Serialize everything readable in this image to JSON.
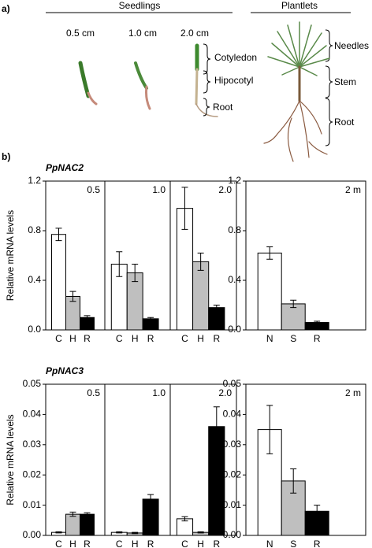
{
  "panel_a": {
    "label": "a)",
    "seedlings_title": "Seedlings",
    "sizes": [
      "0.5 cm",
      "1.0 cm",
      "2.0 cm"
    ],
    "seedling_parts": [
      "Cotyledon",
      "Hipocotyl",
      "Root"
    ],
    "plantlets_title": "Plantlets",
    "plantlet_parts": [
      "Needles",
      "Stem",
      "Root"
    ]
  },
  "panel_b": {
    "label": "b)"
  },
  "chart_data": [
    {
      "type": "bar",
      "title": "PpNAC2",
      "ylabel": "Relative mRNA levels",
      "ylim": [
        0,
        1.2
      ],
      "yticks": [
        {
          "value": 0,
          "label": "0.0"
        },
        0.4,
        0.8,
        1.2
      ],
      "colors": [
        "#ffffff",
        "#bfbfbf",
        "#000000"
      ],
      "panels": [
        {
          "label": "0.5",
          "categories": [
            "C",
            "H",
            "R"
          ],
          "values": [
            0.77,
            0.27,
            0.1
          ],
          "errors": [
            0.05,
            0.04,
            0.015
          ]
        },
        {
          "label": "1.0",
          "categories": [
            "C",
            "H",
            "R"
          ],
          "values": [
            0.53,
            0.46,
            0.09
          ],
          "errors": [
            0.1,
            0.07,
            0.01
          ]
        },
        {
          "label": "2.0",
          "categories": [
            "C",
            "H",
            "R"
          ],
          "values": [
            0.98,
            0.55,
            0.18
          ],
          "errors": [
            0.17,
            0.07,
            0.02
          ]
        },
        {
          "label": "2 m",
          "categories": [
            "N",
            "S",
            "R"
          ],
          "values": [
            0.62,
            0.21,
            0.06
          ],
          "errors": [
            0.05,
            0.03,
            0.01
          ]
        }
      ]
    },
    {
      "type": "bar",
      "title": "PpNAC3",
      "ylabel": "Relative mRNA levels",
      "ylim": [
        0,
        0.05
      ],
      "yticks": [
        {
          "value": 0,
          "label": "0.00"
        },
        0.01,
        0.02,
        0.03,
        0.04,
        0.05
      ],
      "colors": [
        "#ffffff",
        "#bfbfbf",
        "#000000"
      ],
      "panels": [
        {
          "label": "0.5",
          "categories": [
            "C",
            "H",
            "R"
          ],
          "values": [
            0.001,
            0.007,
            0.007
          ],
          "errors": [
            0.0002,
            0.0007,
            0.0005
          ]
        },
        {
          "label": "1.0",
          "categories": [
            "C",
            "H",
            "R"
          ],
          "values": [
            0.001,
            0.0008,
            0.012
          ],
          "errors": [
            0.0002,
            0.0002,
            0.0015
          ]
        },
        {
          "label": "2.0",
          "categories": [
            "C",
            "H",
            "R"
          ],
          "values": [
            0.0055,
            0.001,
            0.036
          ],
          "errors": [
            0.0007,
            0.0002,
            0.0065
          ]
        },
        {
          "label": "2 m",
          "categories": [
            "N",
            "S",
            "R"
          ],
          "values": [
            0.035,
            0.018,
            0.008
          ],
          "errors": [
            0.008,
            0.004,
            0.002
          ]
        }
      ]
    }
  ]
}
